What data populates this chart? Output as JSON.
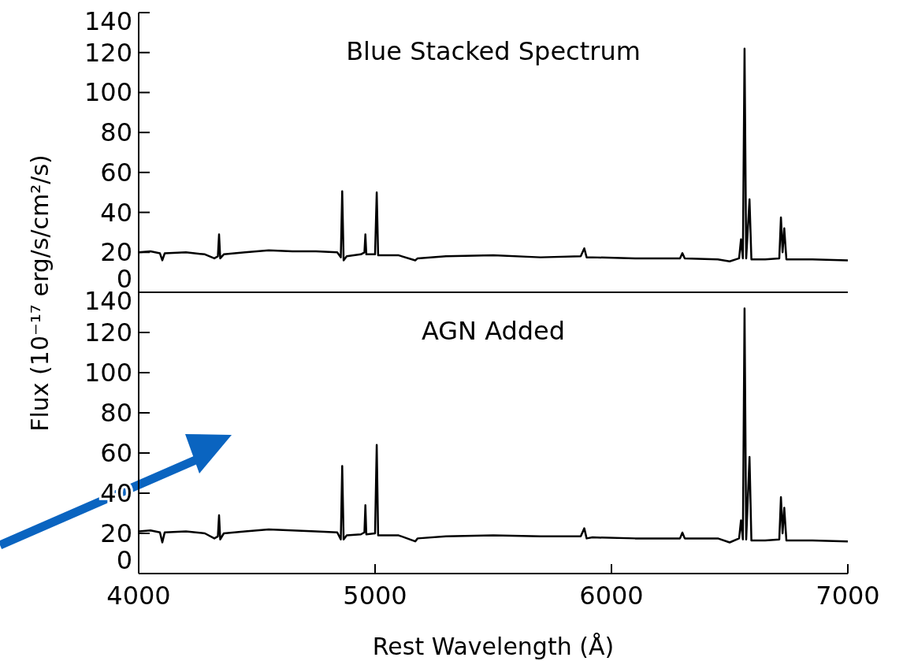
{
  "chart_data": [
    {
      "type": "line",
      "title": "Blue Stacked Spectrum",
      "ylabel": "Flux (10⁻¹⁷ erg/s/cm²/s)",
      "color": "#000000",
      "tick_labels": "y",
      "x": [
        4000,
        4050,
        4090,
        4100,
        4110,
        4200,
        4280,
        4320,
        4335,
        4340,
        4345,
        4360,
        4450,
        4550,
        4650,
        4750,
        4840,
        4855,
        4861,
        4867,
        4880,
        4940,
        4955,
        4959,
        4963,
        5000,
        5007,
        5013,
        5100,
        5170,
        5180,
        5300,
        5500,
        5700,
        5870,
        5885,
        5895,
        5920,
        6100,
        6290,
        6300,
        6310,
        6450,
        6500,
        6540,
        6548,
        6556,
        6563,
        6570,
        6584,
        6592,
        6650,
        6710,
        6717,
        6724,
        6731,
        6740,
        6850,
        7000
      ],
      "values": [
        20,
        20.5,
        19.5,
        16,
        19.5,
        20,
        19,
        17,
        18,
        29,
        17,
        19,
        20,
        21,
        20.5,
        20.5,
        20,
        17.5,
        50.6,
        16,
        18,
        19,
        20,
        29,
        19,
        19,
        50,
        18.5,
        18.5,
        16,
        17,
        18,
        18.5,
        17.5,
        18,
        22,
        17.5,
        17.5,
        17,
        17,
        19.6,
        17,
        16.5,
        15.5,
        17,
        26.5,
        17,
        122,
        17,
        46.5,
        16.5,
        16.5,
        17,
        37.5,
        20,
        32,
        16.5,
        16.5,
        16
      ],
      "xlim": [
        4000,
        7000
      ],
      "xticks": [
        4000,
        5000,
        6000,
        7000
      ],
      "ylim": [
        0,
        140
      ],
      "yticks": [
        0,
        20,
        40,
        60,
        80,
        100,
        120,
        140
      ]
    },
    {
      "type": "line",
      "title": "AGN Added",
      "xlabel": "Rest Wavelength (Å)",
      "color": "#000000",
      "x": [
        4000,
        4050,
        4090,
        4100,
        4110,
        4200,
        4280,
        4320,
        4335,
        4340,
        4345,
        4360,
        4450,
        4550,
        4650,
        4750,
        4840,
        4855,
        4861,
        4867,
        4880,
        4940,
        4955,
        4959,
        4963,
        5000,
        5007,
        5013,
        5100,
        5170,
        5180,
        5300,
        5500,
        5700,
        5870,
        5885,
        5895,
        5920,
        6100,
        6290,
        6300,
        6310,
        6450,
        6500,
        6540,
        6548,
        6556,
        6563,
        6570,
        6584,
        6592,
        6650,
        6710,
        6717,
        6724,
        6731,
        6740,
        6850,
        7000
      ],
      "values": [
        21,
        21.5,
        20.5,
        15.5,
        20.5,
        21,
        20,
        17.5,
        18.5,
        29,
        17,
        20,
        21,
        22,
        21.5,
        21,
        20.5,
        17,
        53.5,
        17,
        19,
        19.5,
        20.5,
        34,
        19.5,
        20,
        64,
        19,
        19,
        16,
        17.5,
        18.5,
        19,
        18.5,
        18.5,
        22.5,
        17.5,
        18,
        17.5,
        17.5,
        20.4,
        17.5,
        17.5,
        15.5,
        17.5,
        26.5,
        17,
        132,
        17,
        58,
        16.5,
        16.5,
        17,
        38,
        20,
        32.7,
        16.5,
        16.5,
        16
      ],
      "xlim": [
        4000,
        7000
      ],
      "xticks": [
        4000,
        5000,
        6000,
        7000
      ],
      "ylim": [
        0,
        140
      ],
      "yticks": [
        0,
        20,
        40,
        60,
        80,
        100,
        120,
        140
      ]
    }
  ]
}
